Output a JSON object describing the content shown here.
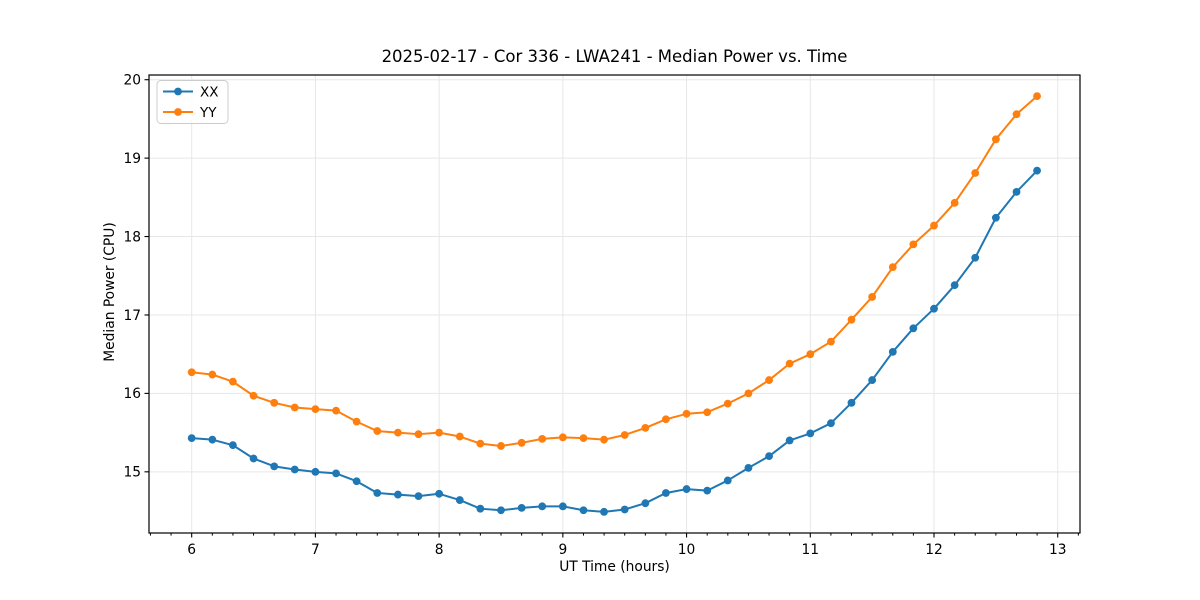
{
  "figure": {
    "background": "#ffffff"
  },
  "chart_data": {
    "type": "line",
    "title": "2025-02-17 - Cor 336 - LWA241 - Median Power vs. Time",
    "xlabel": "UT Time (hours)",
    "ylabel": "Median Power (CPU)",
    "xlim": [
      5.655,
      13.18
    ],
    "ylim": [
      14.22,
      20.06
    ],
    "x_ticks": [
      6,
      7,
      8,
      9,
      10,
      11,
      12,
      13
    ],
    "y_ticks": [
      15,
      16,
      17,
      18,
      19,
      20
    ],
    "x_minor_step": 0.166667,
    "grid": true,
    "grid_color": "#e7e7e7",
    "legend": {
      "position": "upper-left",
      "entries": [
        "XX",
        "YY"
      ]
    },
    "x": [
      6.0,
      6.167,
      6.333,
      6.5,
      6.667,
      6.833,
      7.0,
      7.167,
      7.333,
      7.5,
      7.667,
      7.833,
      8.0,
      8.167,
      8.333,
      8.5,
      8.667,
      8.833,
      9.0,
      9.167,
      9.333,
      9.5,
      9.667,
      9.833,
      10.0,
      10.167,
      10.333,
      10.5,
      10.667,
      10.833,
      11.0,
      11.167,
      11.333,
      11.5,
      11.667,
      11.833,
      12.0,
      12.167,
      12.333,
      12.5,
      12.667,
      12.833
    ],
    "series": [
      {
        "name": "XX",
        "color": "#1f77b4",
        "marker": "circle",
        "values": [
          15.43,
          15.41,
          15.34,
          15.17,
          15.07,
          15.03,
          15.0,
          14.98,
          14.88,
          14.73,
          14.71,
          14.69,
          14.72,
          14.64,
          14.53,
          14.51,
          14.54,
          14.56,
          14.56,
          14.51,
          14.49,
          14.52,
          14.6,
          14.73,
          14.78,
          14.76,
          14.89,
          15.05,
          15.2,
          15.4,
          15.49,
          15.62,
          15.88,
          16.17,
          16.53,
          16.83,
          17.08,
          17.38,
          17.73,
          18.24,
          18.57,
          18.84
        ]
      },
      {
        "name": "YY",
        "color": "#ff7f0e",
        "marker": "circle",
        "values": [
          16.27,
          16.24,
          16.15,
          15.97,
          15.88,
          15.82,
          15.8,
          15.78,
          15.64,
          15.52,
          15.5,
          15.48,
          15.5,
          15.45,
          15.36,
          15.33,
          15.37,
          15.42,
          15.44,
          15.43,
          15.41,
          15.47,
          15.56,
          15.67,
          15.74,
          15.76,
          15.87,
          16.0,
          16.17,
          16.38,
          16.5,
          16.66,
          16.94,
          17.23,
          17.61,
          17.9,
          18.14,
          18.43,
          18.81,
          19.24,
          19.56,
          19.79
        ]
      }
    ]
  }
}
